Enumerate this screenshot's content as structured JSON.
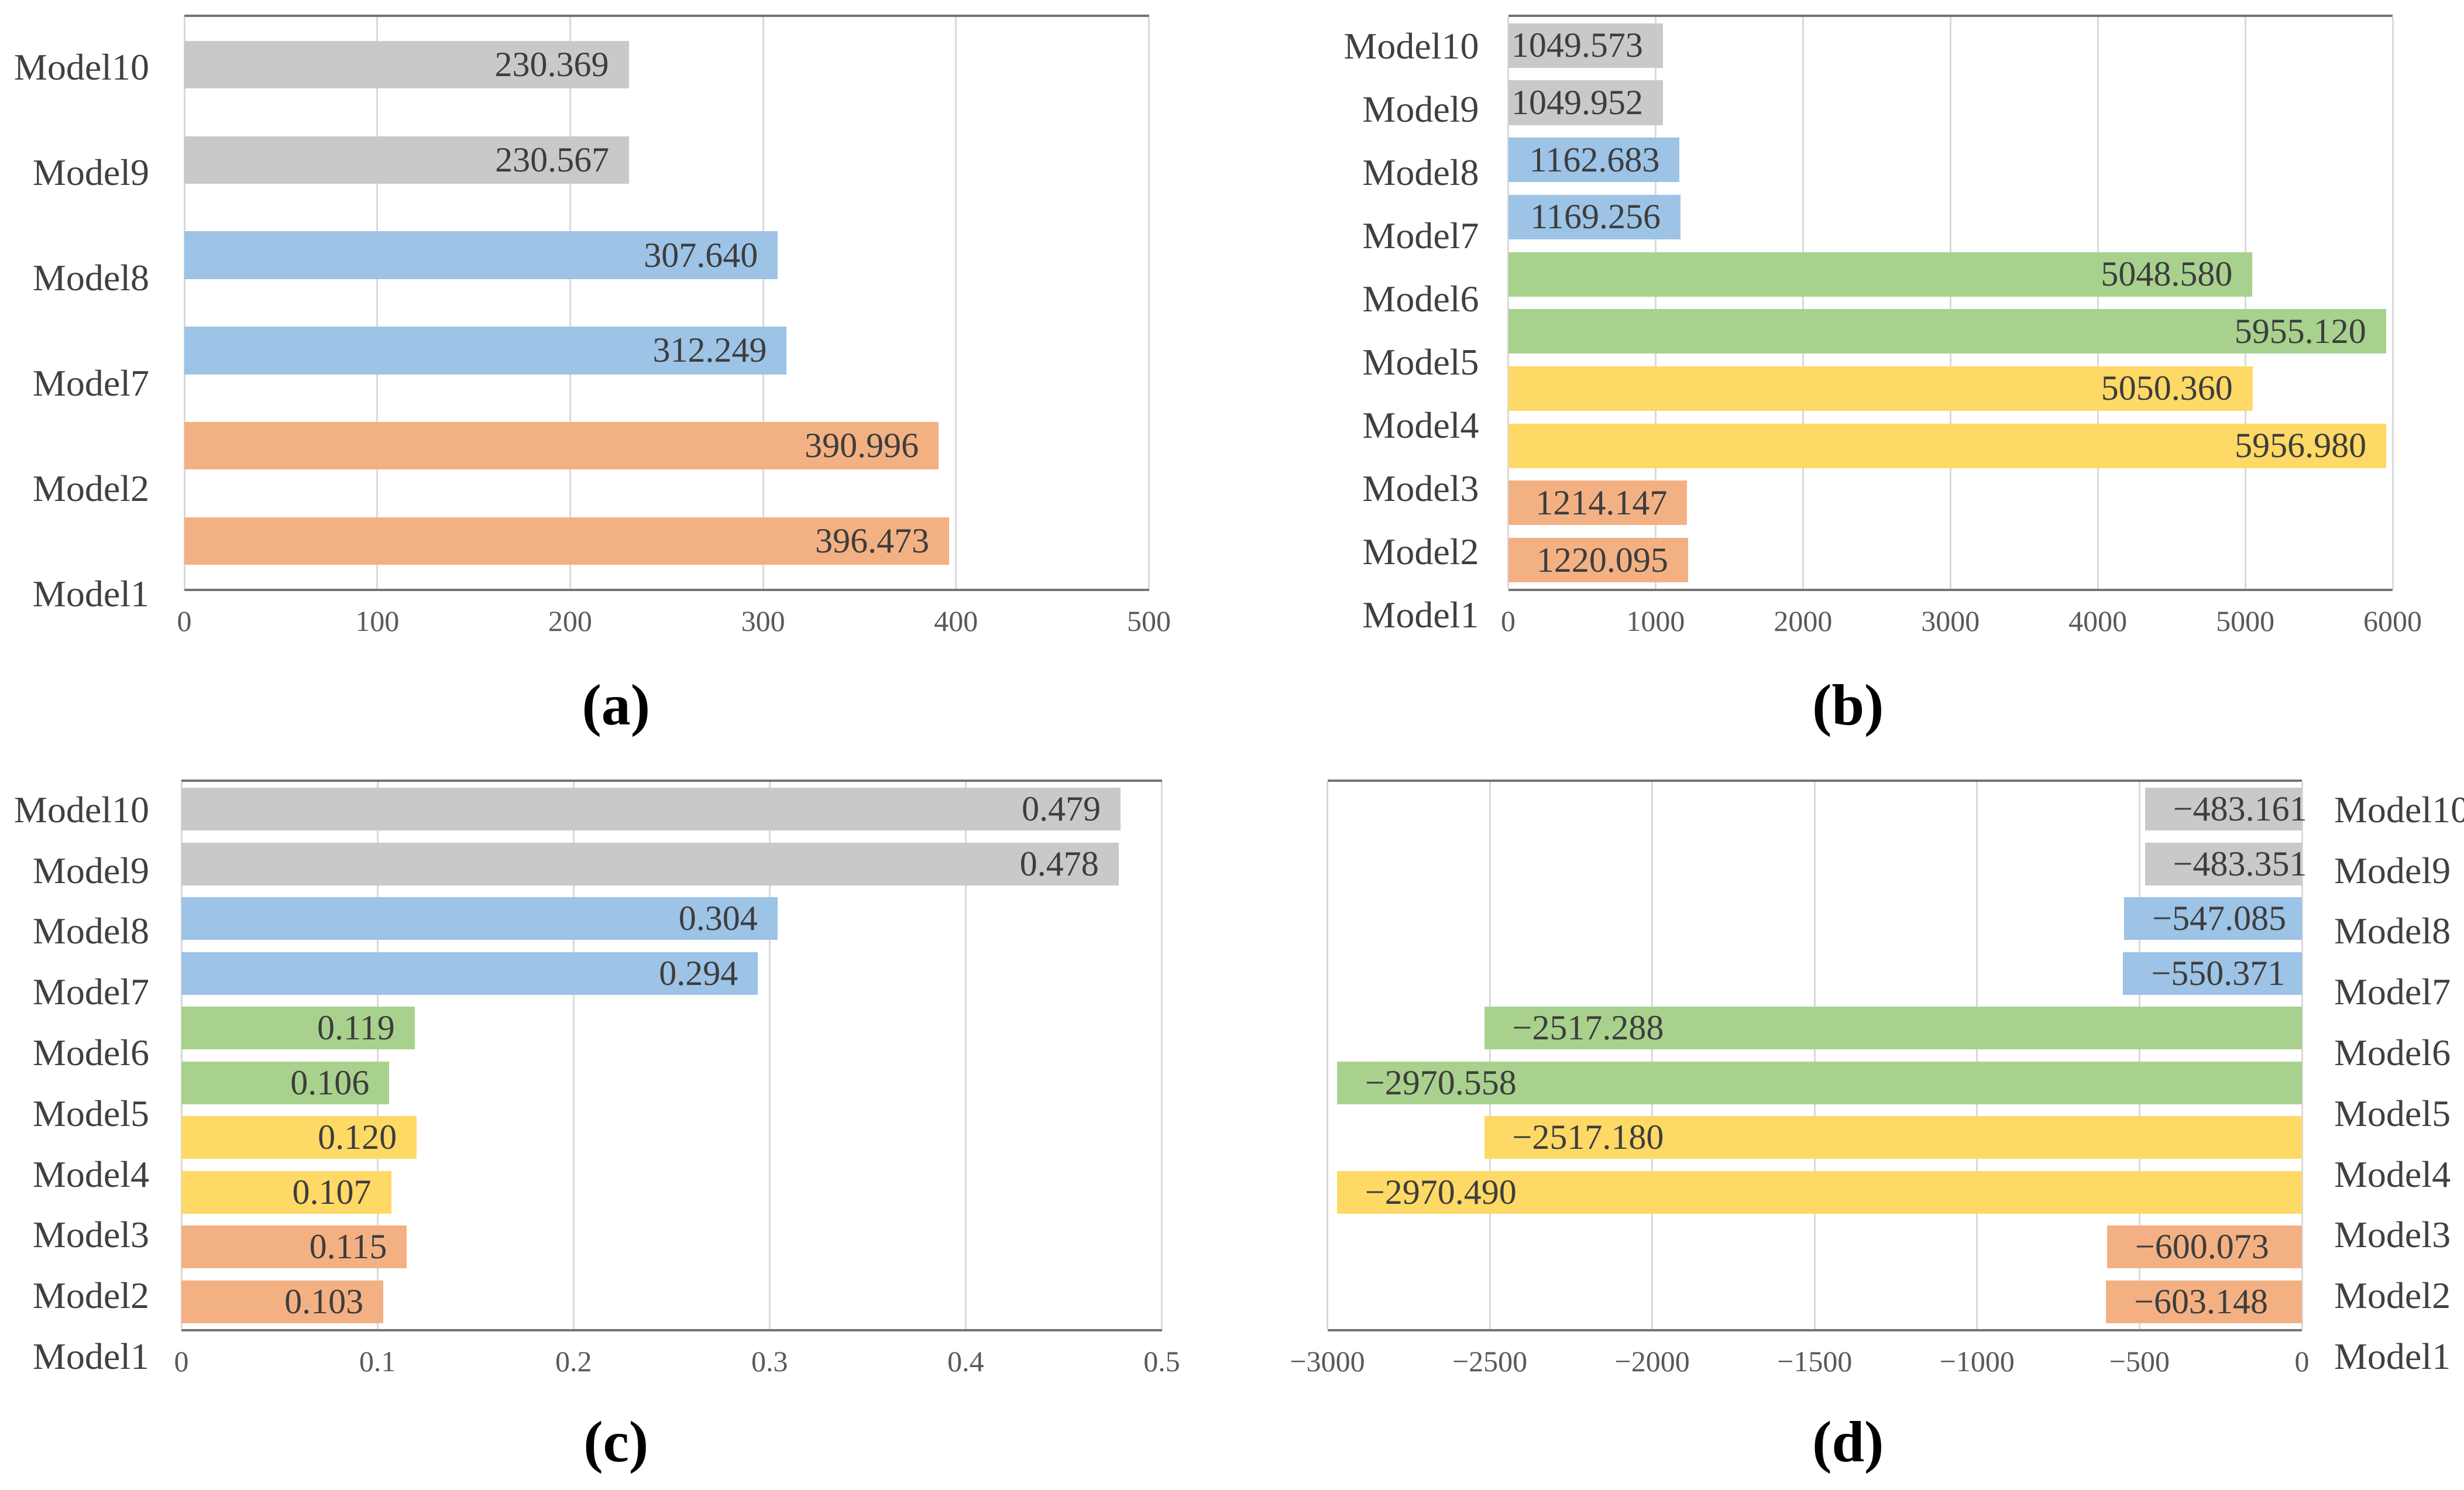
{
  "figure": {
    "description": "Four-panel horizontal bar chart figure comparing Model1 through Model10",
    "panel_labels": [
      "(a)",
      "(b)",
      "(c)",
      "(d)"
    ]
  },
  "palette": {
    "orange": "#F3B183",
    "yellow": "#FFD966",
    "green": "#A9D18E",
    "blue": "#9DC3E6",
    "gray": "#C9C9C9"
  },
  "chart_data": [
    {
      "id": "a",
      "type": "bar",
      "orientation": "horizontal",
      "panel_label": "(a)",
      "grid": true,
      "legend": null,
      "category_side": "left",
      "direction": "right",
      "categories": [
        "Model10",
        "Model9",
        "Model8",
        "Model7",
        "Model2",
        "Model1"
      ],
      "values": [
        230.369,
        230.567,
        307.64,
        312.249,
        390.996,
        396.473
      ],
      "value_labels": [
        "230.369",
        "230.567",
        "307.640",
        "312.249",
        "390.996",
        "396.473"
      ],
      "colors": [
        "gray",
        "gray",
        "blue",
        "blue",
        "orange",
        "orange"
      ],
      "xlim": [
        0,
        500
      ],
      "xticks": [
        0,
        100,
        200,
        300,
        400,
        500
      ],
      "xtick_labels": [
        "0",
        "100",
        "200",
        "300",
        "400",
        "500"
      ]
    },
    {
      "id": "b",
      "type": "bar",
      "orientation": "horizontal",
      "panel_label": "(b)",
      "grid": true,
      "legend": null,
      "category_side": "left",
      "direction": "right",
      "categories": [
        "Model10",
        "Model9",
        "Model8",
        "Model7",
        "Model6",
        "Model5",
        "Model4",
        "Model3",
        "Model2",
        "Model1"
      ],
      "values": [
        1049.573,
        1049.952,
        1162.683,
        1169.256,
        5048.58,
        5955.12,
        5050.36,
        5956.98,
        1214.147,
        1220.095
      ],
      "value_labels": [
        "1049.573",
        "1049.952",
        "1162.683",
        "1169.256",
        "5048.580",
        "5955.120",
        "5050.360",
        "5956.980",
        "1214.147",
        "1220.095"
      ],
      "colors": [
        "gray",
        "gray",
        "blue",
        "blue",
        "green",
        "green",
        "yellow",
        "yellow",
        "orange",
        "orange"
      ],
      "xlim": [
        0,
        6000
      ],
      "xticks": [
        0,
        1000,
        2000,
        3000,
        4000,
        5000,
        6000
      ],
      "xtick_labels": [
        "0",
        "1000",
        "2000",
        "3000",
        "4000",
        "5000",
        "6000"
      ]
    },
    {
      "id": "c",
      "type": "bar",
      "orientation": "horizontal",
      "panel_label": "(c)",
      "grid": true,
      "legend": null,
      "category_side": "left",
      "direction": "right",
      "categories": [
        "Model10",
        "Model9",
        "Model8",
        "Model7",
        "Model6",
        "Model5",
        "Model4",
        "Model3",
        "Model2",
        "Model1"
      ],
      "values": [
        0.479,
        0.478,
        0.304,
        0.294,
        0.119,
        0.106,
        0.12,
        0.107,
        0.115,
        0.103
      ],
      "value_labels": [
        "0.479",
        "0.478",
        "0.304",
        "0.294",
        "0.119",
        "0.106",
        "0.120",
        "0.107",
        "0.115",
        "0.103"
      ],
      "colors": [
        "gray",
        "gray",
        "blue",
        "blue",
        "green",
        "green",
        "yellow",
        "yellow",
        "orange",
        "orange"
      ],
      "xlim": [
        0,
        0.5
      ],
      "xticks": [
        0,
        0.1,
        0.2,
        0.3,
        0.4,
        0.5
      ],
      "xtick_labels": [
        "0",
        "0.1",
        "0.2",
        "0.3",
        "0.4",
        "0.5"
      ]
    },
    {
      "id": "d",
      "type": "bar",
      "orientation": "horizontal",
      "panel_label": "(d)",
      "grid": true,
      "legend": null,
      "category_side": "right",
      "direction": "left",
      "categories": [
        "Model10",
        "Model9",
        "Model8",
        "Model7",
        "Model6",
        "Model5",
        "Model4",
        "Model3",
        "Model2",
        "Model1"
      ],
      "values": [
        -483.161,
        -483.351,
        -547.085,
        -550.371,
        -2517.288,
        -2970.558,
        -2517.18,
        -2970.49,
        -600.073,
        -603.148
      ],
      "value_labels": [
        "−483.161",
        "−483.351",
        "−547.085",
        "−550.371",
        "−2517.288",
        "−2970.558",
        "−2517.180",
        "−2970.490",
        "−600.073",
        "−603.148"
      ],
      "colors": [
        "gray",
        "gray",
        "blue",
        "blue",
        "green",
        "green",
        "yellow",
        "yellow",
        "orange",
        "orange"
      ],
      "xlim": [
        -3000,
        0
      ],
      "xticks": [
        -3000,
        -2500,
        -2000,
        -1500,
        -1000,
        -500,
        0
      ],
      "xtick_labels": [
        "−3000",
        "−2500",
        "−2000",
        "−1500",
        "−1000",
        "−500",
        "0"
      ]
    }
  ]
}
